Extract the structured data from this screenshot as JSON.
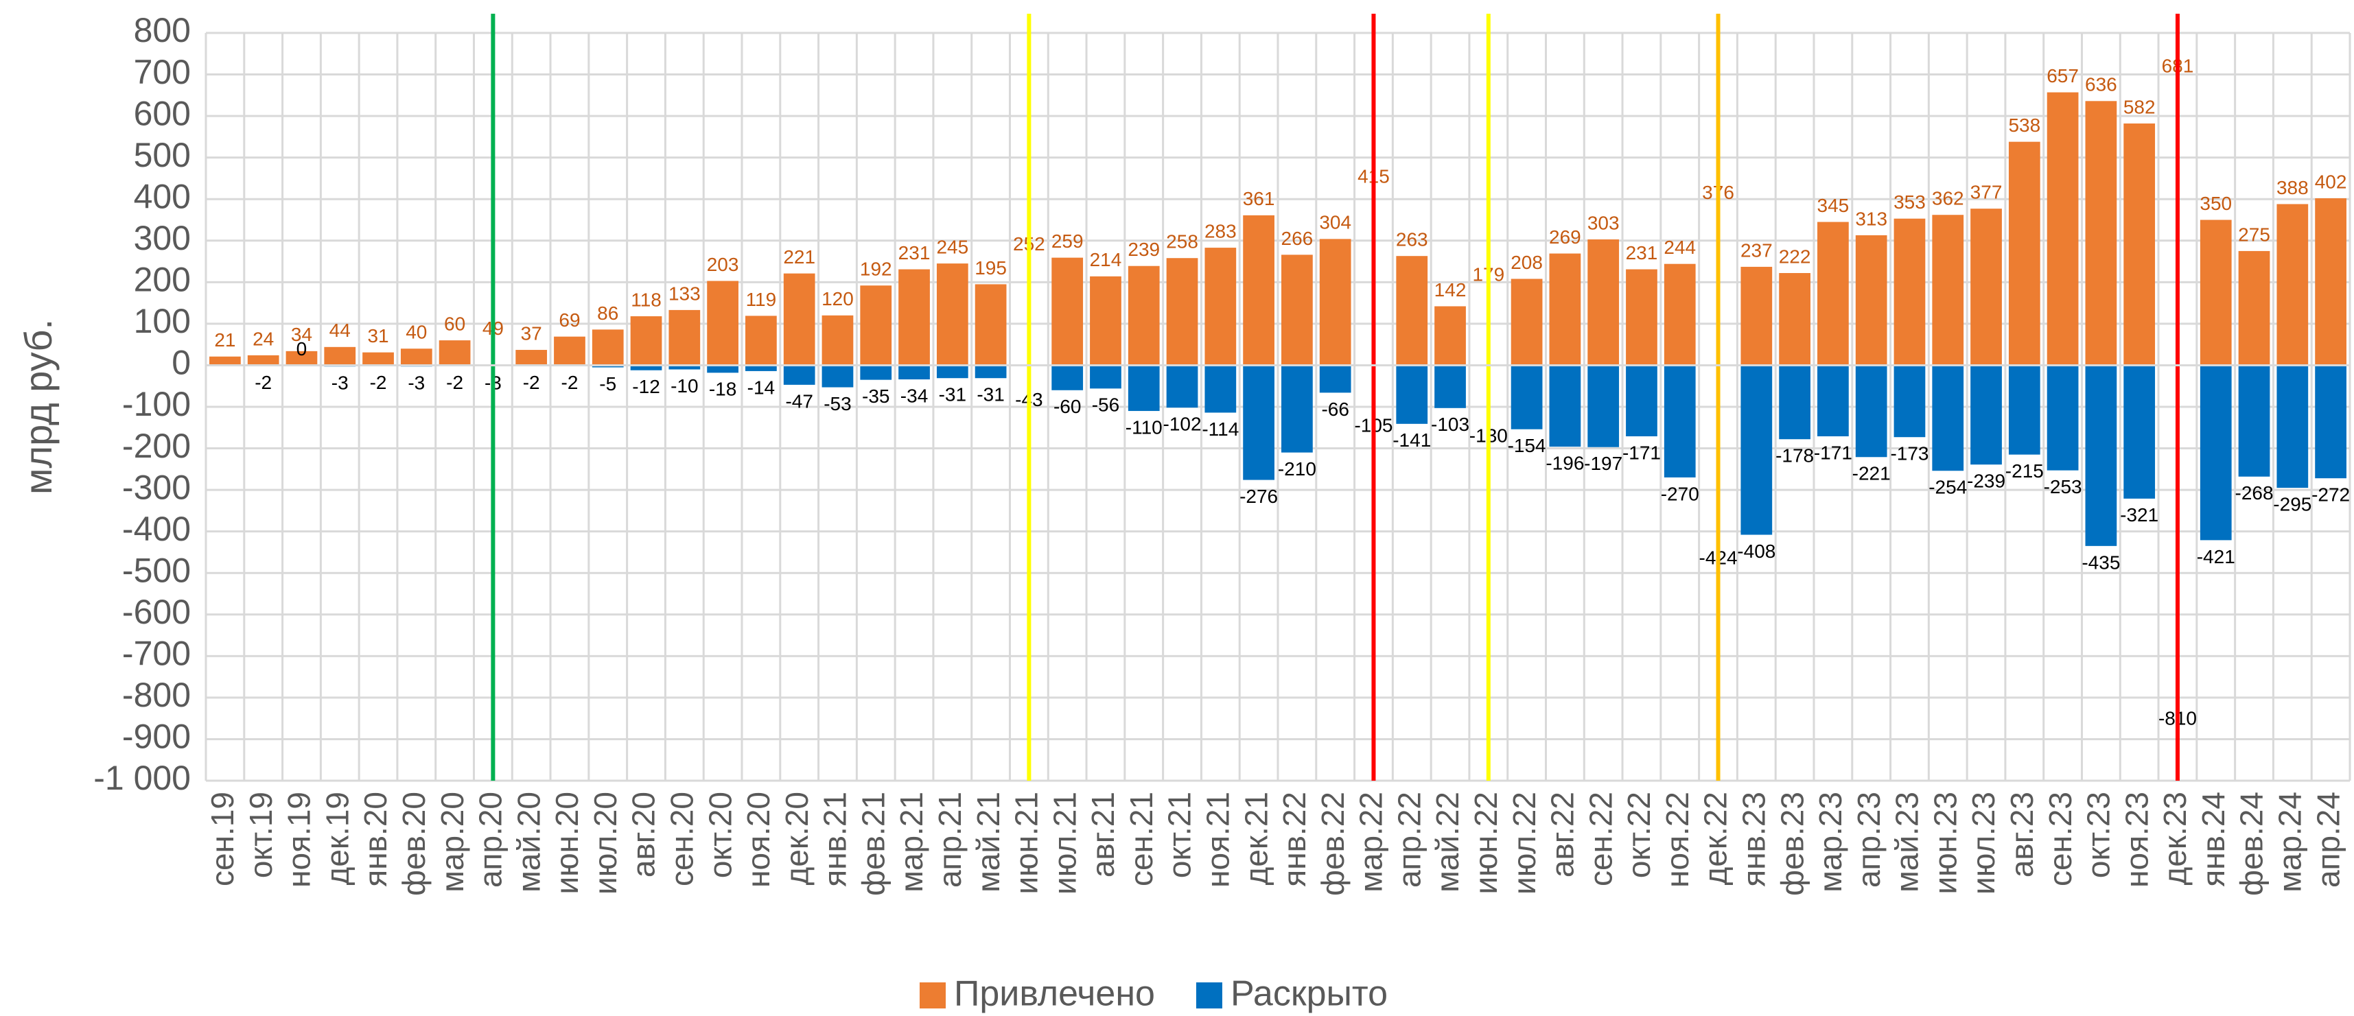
{
  "chart_data": {
    "type": "bar",
    "y_label": "млрд руб.",
    "categories": [
      "сен.19",
      "окт.19",
      "ноя.19",
      "дек.19",
      "янв.20",
      "фев.20",
      "мар.20",
      "апр.20",
      "май.20",
      "июн.20",
      "июл.20",
      "авг.20",
      "сен.20",
      "окт.20",
      "ноя.20",
      "дек.20",
      "янв.21",
      "фев.21",
      "мар.21",
      "апр.21",
      "май.21",
      "июн.21",
      "июл.21",
      "авг.21",
      "сен.21",
      "окт.21",
      "ноя.21",
      "дек.21",
      "янв.22",
      "фев.22",
      "мар.22",
      "апр.22",
      "май.22",
      "июн.22",
      "июл.22",
      "авг.22",
      "сен.22",
      "окт.22",
      "ноя.22",
      "дек.22",
      "янв.23",
      "фев.23",
      "мар.23",
      "апр.23",
      "май.23",
      "июн.23",
      "июл.23",
      "авг.23",
      "сен.23",
      "окт.23",
      "ноя.23",
      "дек.23",
      "янв.24",
      "фев.24",
      "мар.24",
      "апр.24"
    ],
    "series": [
      {
        "name": "Привлечено",
        "color": "#ed7d31",
        "label_color": "#c55a11",
        "values": [
          21,
          24,
          34,
          44,
          31,
          40,
          60,
          49,
          37,
          69,
          86,
          118,
          133,
          203,
          119,
          221,
          120,
          192,
          231,
          245,
          195,
          252,
          259,
          214,
          239,
          258,
          283,
          361,
          266,
          304,
          415,
          263,
          142,
          179,
          208,
          269,
          303,
          231,
          244,
          376,
          237,
          222,
          345,
          313,
          353,
          362,
          377,
          538,
          657,
          636,
          582,
          681,
          350,
          275,
          388,
          402
        ]
      },
      {
        "name": "Раскрыто",
        "color": "#0070c0",
        "label_color": "#000000",
        "values": [
          null,
          -2,
          0,
          -3,
          -2,
          -3,
          -2,
          -3,
          -2,
          -2,
          -5,
          -12,
          -10,
          -18,
          -14,
          -47,
          -53,
          -35,
          -34,
          -31,
          -31,
          -43,
          -60,
          -56,
          -110,
          -102,
          -114,
          -276,
          -210,
          -66,
          -105,
          -141,
          -103,
          -130,
          -154,
          -196,
          -197,
          -171,
          -270,
          -424,
          -408,
          -178,
          -171,
          -221,
          -173,
          -254,
          -239,
          -215,
          -253,
          -435,
          -321,
          -810,
          -421,
          -268,
          -295,
          -272
        ]
      }
    ],
    "markers": [
      {
        "index": 7,
        "color": "#00b050"
      },
      {
        "index": 21,
        "color": "#ffff00"
      },
      {
        "index": 30,
        "color": "#ff0000"
      },
      {
        "index": 33,
        "color": "#ffff00"
      },
      {
        "index": 39,
        "color": "#ffc000"
      },
      {
        "index": 51,
        "color": "#ff0000"
      }
    ],
    "ylim": [
      -1000,
      800
    ],
    "yticks": [
      {
        "value": -1000,
        "label": "-1 000"
      },
      -900,
      -800,
      -700,
      -600,
      -500,
      -400,
      -300,
      -200,
      -100,
      0,
      100,
      200,
      300,
      400,
      500,
      600,
      700,
      800
    ],
    "grid": true,
    "legend": "bottom"
  }
}
